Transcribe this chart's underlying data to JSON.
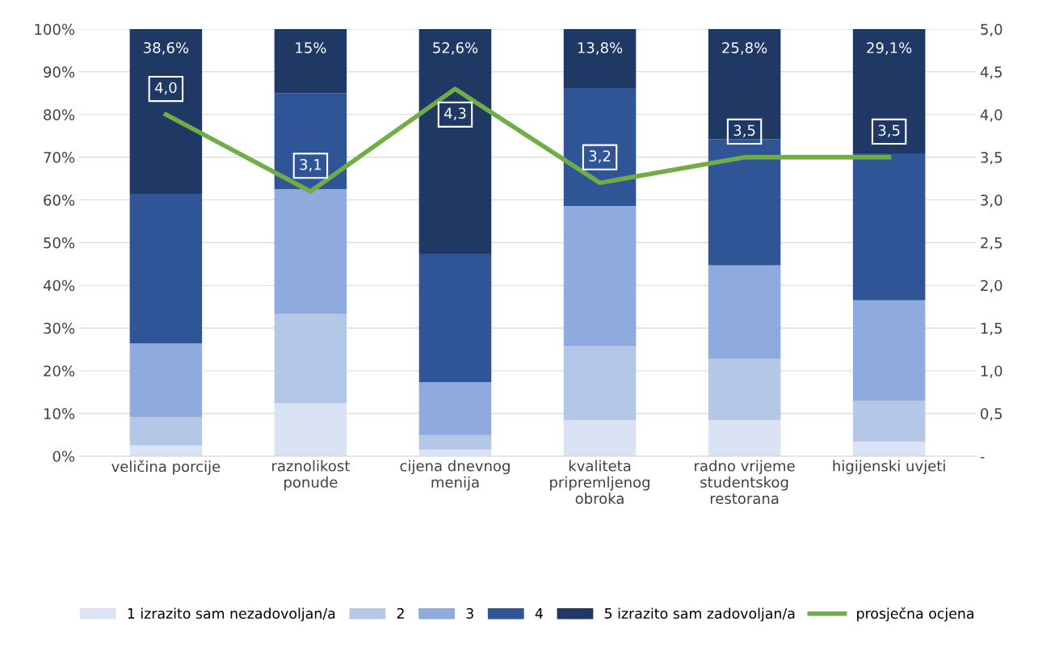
{
  "chart_data": {
    "type": "bar",
    "stacked": true,
    "categories": [
      "veličina porcije",
      "raznolikost\nponude",
      "cijena dnevnog\nmenija",
      "kvaliteta\npripremljenog\nobroka",
      "radno vrijeme\nstudentskog\nrestorana",
      "higijenski uvjeti"
    ],
    "series": [
      {
        "name": "1 izrazito sam nezadovoljan/a",
        "color": "#dae3f3",
        "values": [
          2.5,
          12.4,
          1.5,
          8.4,
          8.4,
          3.4
        ]
      },
      {
        "name": "2",
        "color": "#b4c7e7",
        "values": [
          6.6,
          20.9,
          3.4,
          17.3,
          14.4,
          9.5
        ]
      },
      {
        "name": "3",
        "color": "#8faadc",
        "values": [
          17.3,
          29.2,
          12.4,
          32.9,
          21.9,
          23.6
        ]
      },
      {
        "name": "4",
        "color": "#2f5597",
        "values": [
          35.0,
          22.5,
          30.1,
          27.6,
          29.5,
          34.4
        ]
      },
      {
        "name": "5 izrazito sam zadovoljan/a",
        "color": "#1f3864",
        "values": [
          38.6,
          15,
          52.6,
          13.8,
          25.8,
          29.1
        ],
        "value_labels": [
          "38,6%",
          "15%",
          "52,6%",
          "13,8%",
          "25,8%",
          "29,1%"
        ]
      },
      {
        "name": "prosječna ocjena",
        "type": "line",
        "axis": "y2",
        "color": "#70ad47",
        "values": [
          4.0,
          3.1,
          4.3,
          3.2,
          3.5,
          3.5
        ],
        "value_labels": [
          "4,0",
          "3,1",
          "4,3",
          "3,2",
          "3,5",
          "3,5"
        ]
      }
    ],
    "ylim": [
      0,
      100
    ],
    "yticks": [
      {
        "value": 0,
        "label": "0%"
      },
      {
        "value": 10,
        "label": "10%"
      },
      {
        "value": 20,
        "label": "20%"
      },
      {
        "value": 30,
        "label": "30%"
      },
      {
        "value": 40,
        "label": "40%"
      },
      {
        "value": 50,
        "label": "50%"
      },
      {
        "value": 60,
        "label": "60%"
      },
      {
        "value": 70,
        "label": "70%"
      },
      {
        "value": 80,
        "label": "80%"
      },
      {
        "value": 90,
        "label": "90%"
      },
      {
        "value": 100,
        "label": "100%"
      }
    ],
    "y2lim": [
      0,
      5
    ],
    "y2ticks": [
      {
        "value": 0,
        "label": "-"
      },
      {
        "value": 0.5,
        "label": "0,5"
      },
      {
        "value": 1,
        "label": "1,0"
      },
      {
        "value": 1.5,
        "label": "1,5"
      },
      {
        "value": 2,
        "label": "2,0"
      },
      {
        "value": 2.5,
        "label": "2,5"
      },
      {
        "value": 3,
        "label": "3,0"
      },
      {
        "value": 3.5,
        "label": "3,5"
      },
      {
        "value": 4,
        "label": "4,0"
      },
      {
        "value": 4.5,
        "label": "4,5"
      },
      {
        "value": 5,
        "label": "5,0"
      }
    ],
    "grid": "y",
    "legend": "bottom"
  }
}
